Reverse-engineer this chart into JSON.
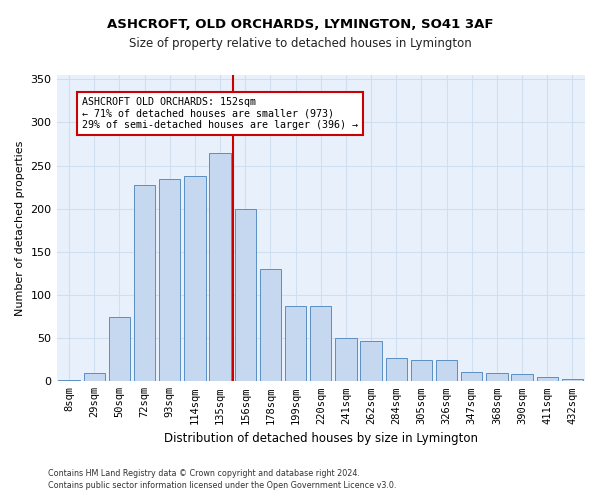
{
  "title": "ASHCROFT, OLD ORCHARDS, LYMINGTON, SO41 3AF",
  "subtitle": "Size of property relative to detached houses in Lymington",
  "xlabel": "Distribution of detached houses by size in Lymington",
  "ylabel": "Number of detached properties",
  "categories": [
    "8sqm",
    "29sqm",
    "50sqm",
    "72sqm",
    "93sqm",
    "114sqm",
    "135sqm",
    "156sqm",
    "178sqm",
    "199sqm",
    "220sqm",
    "241sqm",
    "262sqm",
    "284sqm",
    "305sqm",
    "326sqm",
    "347sqm",
    "368sqm",
    "390sqm",
    "411sqm",
    "432sqm"
  ],
  "values": [
    2,
    10,
    75,
    228,
    235,
    238,
    265,
    200,
    130,
    87,
    87,
    50,
    47,
    27,
    25,
    25,
    11,
    10,
    9,
    5,
    3
  ],
  "bar_color": "#c5d8f0",
  "bar_edge_color": "#5a8fc3",
  "vline_color": "#cc0000",
  "annotation_box_color": "#ffffff",
  "annotation_box_edge_color": "#cc0000",
  "annotation_line1": "ASHCROFT OLD ORCHARDS: 152sqm",
  "annotation_line2": "← 71% of detached houses are smaller (973)",
  "annotation_line3": "29% of semi-detached houses are larger (396) →",
  "grid_color": "#d0dff0",
  "bg_color": "#e8f0fb",
  "footer1": "Contains HM Land Registry data © Crown copyright and database right 2024.",
  "footer2": "Contains public sector information licensed under the Open Government Licence v3.0.",
  "ylim": [
    0,
    355
  ],
  "yticks": [
    0,
    50,
    100,
    150,
    200,
    250,
    300,
    350
  ]
}
